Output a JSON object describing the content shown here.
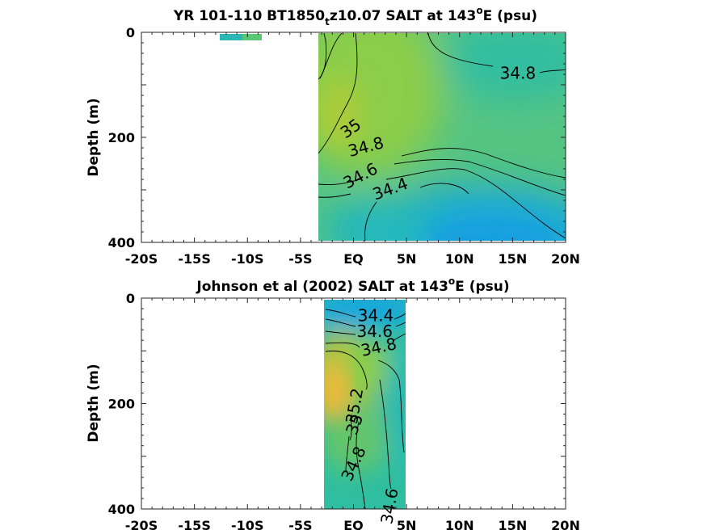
{
  "chart_data": [
    {
      "type": "heatmap",
      "title": "YR 101-110 BT1850_tz10.07 SALT at 143°E (psu)",
      "title_parts": {
        "pre": "YR 101-110 BT1850",
        "sub": "t",
        "mid": "z10.07 SALT at 143",
        "sup": "o",
        "post": "E (psu)"
      },
      "ylabel": "Depth (m)",
      "xlabel": "",
      "xlim": [
        -20,
        20
      ],
      "ylim": [
        400,
        0
      ],
      "x_ticks": [
        -20,
        -15,
        -10,
        -5,
        0,
        5,
        10,
        15,
        20
      ],
      "x_tick_labels": [
        "-20S",
        "-15S",
        "-10S",
        "-5S",
        "EQ",
        "5N",
        "10N",
        "15N",
        "20N"
      ],
      "y_ticks": [
        0,
        200,
        400
      ],
      "y_tick_labels": [
        "0",
        "200",
        "400"
      ],
      "grid": false,
      "colormap": "parula",
      "data_extent": {
        "lat": [
          -3,
          20
        ],
        "depth": [
          0,
          400
        ]
      },
      "isolated_patch": {
        "lat": [
          -12,
          -10
        ],
        "depth": [
          0,
          10
        ]
      },
      "contour_labels": [
        {
          "text": "34.8",
          "lat": 15.5,
          "depth": 80,
          "angle": 0
        },
        {
          "text": "35",
          "lat": -0.2,
          "depth": 185,
          "angle": -35
        },
        {
          "text": "34.8",
          "lat": 1.2,
          "depth": 220,
          "angle": -15
        },
        {
          "text": "34.6",
          "lat": 0.7,
          "depth": 275,
          "angle": -28
        },
        {
          "text": "34.4",
          "lat": 3.5,
          "depth": 300,
          "angle": -20
        }
      ]
    },
    {
      "type": "heatmap",
      "title": "Johnson et al (2002) SALT at 143°E (psu)",
      "title_parts": {
        "pre": "Johnson et al (2002) SALT at 143",
        "sup": "o",
        "post": "E (psu)"
      },
      "ylabel": "Depth (m)",
      "xlabel": "",
      "xlim": [
        -20,
        20
      ],
      "ylim": [
        400,
        0
      ],
      "x_ticks": [
        -20,
        -15,
        -10,
        -5,
        0,
        5,
        10,
        15,
        20
      ],
      "x_tick_labels": [
        "-20S",
        "-15S",
        "-10S",
        "-5S",
        "EQ",
        "5N",
        "10N",
        "15N",
        "20N"
      ],
      "y_ticks": [
        0,
        200,
        400
      ],
      "y_tick_labels": [
        "0",
        "200",
        "400"
      ],
      "grid": false,
      "colormap": "parula",
      "data_extent": {
        "lat": [
          -2.5,
          5
        ],
        "depth": [
          0,
          400
        ]
      },
      "contour_labels": [
        {
          "text": "34.4",
          "lat": 2.1,
          "depth": 35,
          "angle": 0
        },
        {
          "text": "34.6",
          "lat": 2.0,
          "depth": 65,
          "angle": 0
        },
        {
          "text": "34.8",
          "lat": 2.4,
          "depth": 95,
          "angle": -12
        },
        {
          "text": "35.2",
          "lat": 0.2,
          "depth": 205,
          "angle": -80
        },
        {
          "text": "35",
          "lat": 0.2,
          "depth": 240,
          "angle": -70
        },
        {
          "text": "34.8",
          "lat": 0.1,
          "depth": 315,
          "angle": -65
        },
        {
          "text": "34.6",
          "lat": 3.5,
          "depth": 395,
          "angle": -80
        }
      ]
    }
  ]
}
